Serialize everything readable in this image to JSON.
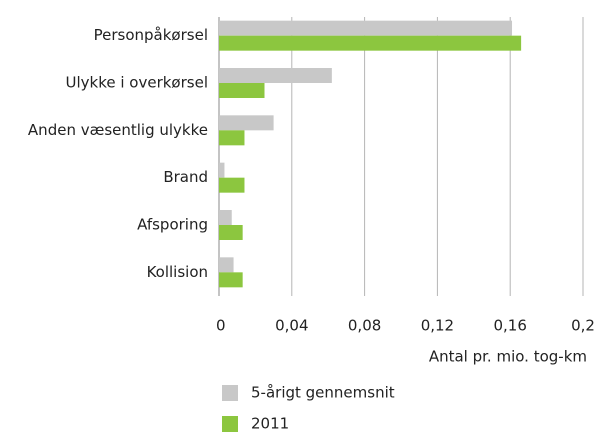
{
  "chart_data": {
    "type": "hbar",
    "categories": [
      "Personpåkørsel",
      "Ulykke i overkørsel",
      "Anden væsentlig ulykke",
      "Brand",
      "Afsporing",
      "Kollision"
    ],
    "series": [
      {
        "name": "5-årigt gennemsnit",
        "color": "#c8c8c8",
        "values": [
          0.161,
          0.062,
          0.03,
          0.003,
          0.007,
          0.008
        ]
      },
      {
        "name": "2011",
        "color": "#8cc63f",
        "values": [
          0.166,
          0.025,
          0.014,
          0.014,
          0.013,
          0.013
        ]
      }
    ],
    "xlabel": "Antal pr. mio. tog-km",
    "xlim": [
      0,
      0.2
    ],
    "xticks": [
      0,
      {
        "value": 0.04,
        "label": "0,04"
      },
      {
        "value": 0.08,
        "label": "0,08"
      },
      {
        "value": 0.12,
        "label": "0,12"
      },
      {
        "value": 0.16,
        "label": "0,16"
      },
      {
        "value": 0.2,
        "label": "0,2"
      }
    ],
    "grid": true
  }
}
